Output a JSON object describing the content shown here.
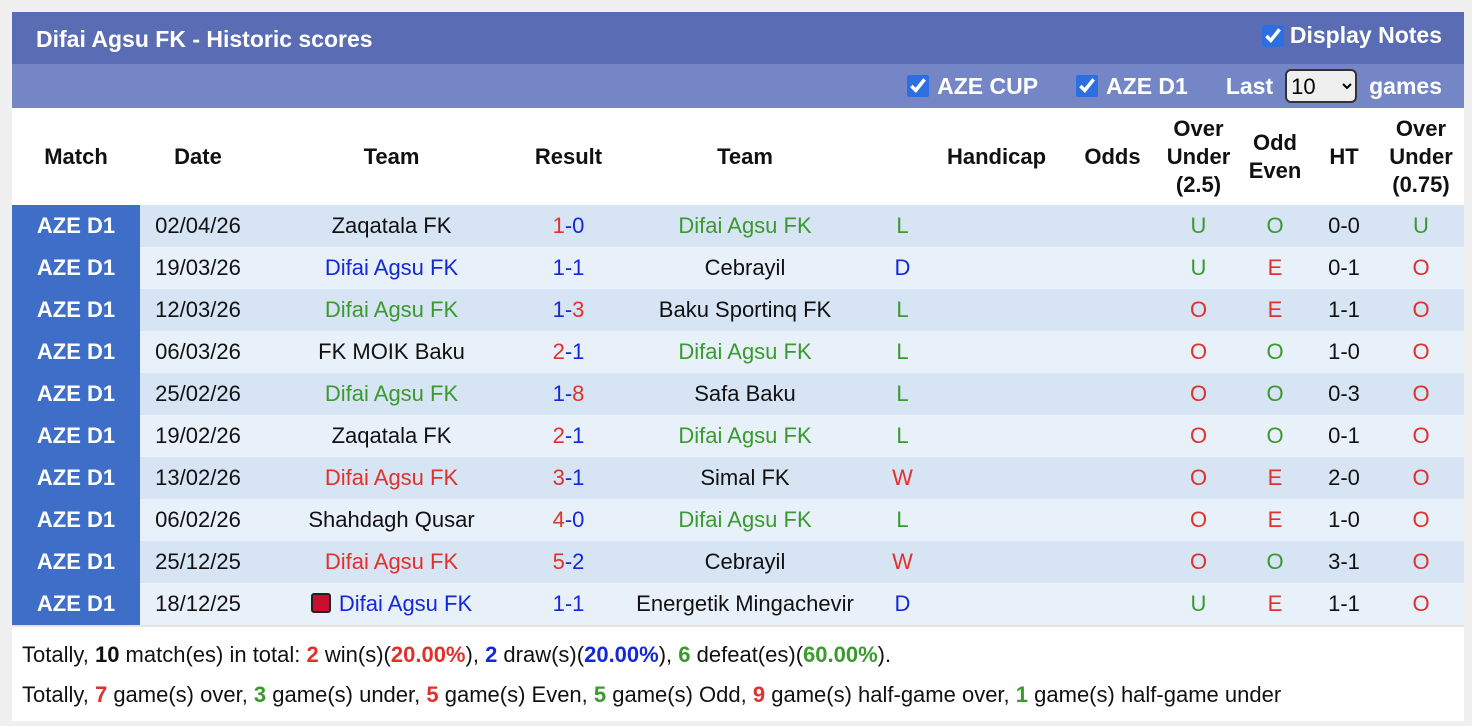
{
  "header": {
    "title": "Difai Agsu FK - Historic scores",
    "display_notes": "Display Notes",
    "filters": [
      "AZE CUP",
      "AZE D1"
    ],
    "last": "Last",
    "games_count": "10",
    "games": "games"
  },
  "table": {
    "columns": [
      "Match",
      "Date",
      "Team",
      "Result",
      "Team",
      "Handicap",
      "Odds",
      "Over Under (2.5)",
      "Odd Even",
      "HT",
      "Over Under (0.75)"
    ],
    "text_colors": {
      "black": "#111111",
      "green": "#3a9a2e",
      "blue": "#1428d8",
      "red": "#e2302a"
    },
    "outcome_colors": {
      "W": "red",
      "D": "blue",
      "L": "green"
    },
    "over_under_colors": {
      "O": "red",
      "U": "green"
    },
    "odd_even_colors": {
      "O": "green",
      "E": "red"
    },
    "rows": [
      {
        "match": "AZE D1",
        "date": "02/04/26",
        "home": "Zaqatala FK",
        "home_color": "black",
        "score": "1-0",
        "away": "Difai Agsu FK",
        "away_color": "green",
        "outcome": "L",
        "ou": "U",
        "oe": "O",
        "ht": "0-0",
        "ou075": "U"
      },
      {
        "match": "AZE D1",
        "date": "19/03/26",
        "home": "Difai Agsu FK",
        "home_color": "blue",
        "score": "1-1",
        "away": "Cebrayil",
        "away_color": "black",
        "outcome": "D",
        "ou": "U",
        "oe": "E",
        "ht": "0-1",
        "ou075": "O"
      },
      {
        "match": "AZE D1",
        "date": "12/03/26",
        "home": "Difai Agsu FK",
        "home_color": "green",
        "score": "1-3",
        "away": "Baku Sportinq FK",
        "away_color": "black",
        "outcome": "L",
        "ou": "O",
        "oe": "E",
        "ht": "1-1",
        "ou075": "O"
      },
      {
        "match": "AZE D1",
        "date": "06/03/26",
        "home": "FK MOIK Baku",
        "home_color": "black",
        "score": "2-1",
        "away": "Difai Agsu FK",
        "away_color": "green",
        "outcome": "L",
        "ou": "O",
        "oe": "O",
        "ht": "1-0",
        "ou075": "O"
      },
      {
        "match": "AZE D1",
        "date": "25/02/26",
        "home": "Difai Agsu FK",
        "home_color": "green",
        "score": "1-8",
        "away": "Safa Baku",
        "away_color": "black",
        "outcome": "L",
        "ou": "O",
        "oe": "O",
        "ht": "0-3",
        "ou075": "O"
      },
      {
        "match": "AZE D1",
        "date": "19/02/26",
        "home": "Zaqatala FK",
        "home_color": "black",
        "score": "2-1",
        "away": "Difai Agsu FK",
        "away_color": "green",
        "outcome": "L",
        "ou": "O",
        "oe": "O",
        "ht": "0-1",
        "ou075": "O"
      },
      {
        "match": "AZE D1",
        "date": "13/02/26",
        "home": "Difai Agsu FK",
        "home_color": "red",
        "score": "3-1",
        "away": "Simal FK",
        "away_color": "black",
        "outcome": "W",
        "ou": "O",
        "oe": "E",
        "ht": "2-0",
        "ou075": "O"
      },
      {
        "match": "AZE D1",
        "date": "06/02/26",
        "home": "Shahdagh Qusar",
        "home_color": "black",
        "score": "4-0",
        "away": "Difai Agsu FK",
        "away_color": "green",
        "outcome": "L",
        "ou": "O",
        "oe": "E",
        "ht": "1-0",
        "ou075": "O"
      },
      {
        "match": "AZE D1",
        "date": "25/12/25",
        "home": "Difai Agsu FK",
        "home_color": "red",
        "score": "5-2",
        "away": "Cebrayil",
        "away_color": "black",
        "outcome": "W",
        "ou": "O",
        "oe": "O",
        "ht": "3-1",
        "ou075": "O"
      },
      {
        "match": "AZE D1",
        "date": "18/12/25",
        "home": "Difai Agsu FK",
        "home_color": "blue",
        "home_flag": true,
        "score": "1-1",
        "away": "Energetik Mingachevir",
        "away_color": "black",
        "outcome": "D",
        "ou": "U",
        "oe": "E",
        "ht": "1-1",
        "ou075": "O"
      }
    ]
  },
  "footer": [
    [
      {
        "text": "Totally, "
      },
      {
        "text": "10",
        "color": "black",
        "bold": true
      },
      {
        "text": " match(es) in total: "
      },
      {
        "text": "2",
        "color": "red",
        "bold": true
      },
      {
        "text": " win(s)("
      },
      {
        "text": "20.00%",
        "color": "red",
        "bold": true
      },
      {
        "text": "), "
      },
      {
        "text": "2",
        "color": "blue",
        "bold": true
      },
      {
        "text": " draw(s)("
      },
      {
        "text": "20.00%",
        "color": "blue",
        "bold": true
      },
      {
        "text": "), "
      },
      {
        "text": "6",
        "color": "green",
        "bold": true
      },
      {
        "text": " defeat(es)("
      },
      {
        "text": "60.00%",
        "color": "green",
        "bold": true
      },
      {
        "text": ")."
      }
    ],
    [
      {
        "text": "Totally, "
      },
      {
        "text": "7",
        "color": "red",
        "bold": true
      },
      {
        "text": " game(s) over, "
      },
      {
        "text": "3",
        "color": "green",
        "bold": true
      },
      {
        "text": " game(s) under, "
      },
      {
        "text": "5",
        "color": "red",
        "bold": true
      },
      {
        "text": " game(s) Even, "
      },
      {
        "text": "5",
        "color": "green",
        "bold": true
      },
      {
        "text": " game(s) Odd, "
      },
      {
        "text": "9",
        "color": "red",
        "bold": true
      },
      {
        "text": " game(s) half-game over, "
      },
      {
        "text": "1",
        "color": "green",
        "bold": true
      },
      {
        "text": " game(s) half-game under"
      }
    ]
  ]
}
